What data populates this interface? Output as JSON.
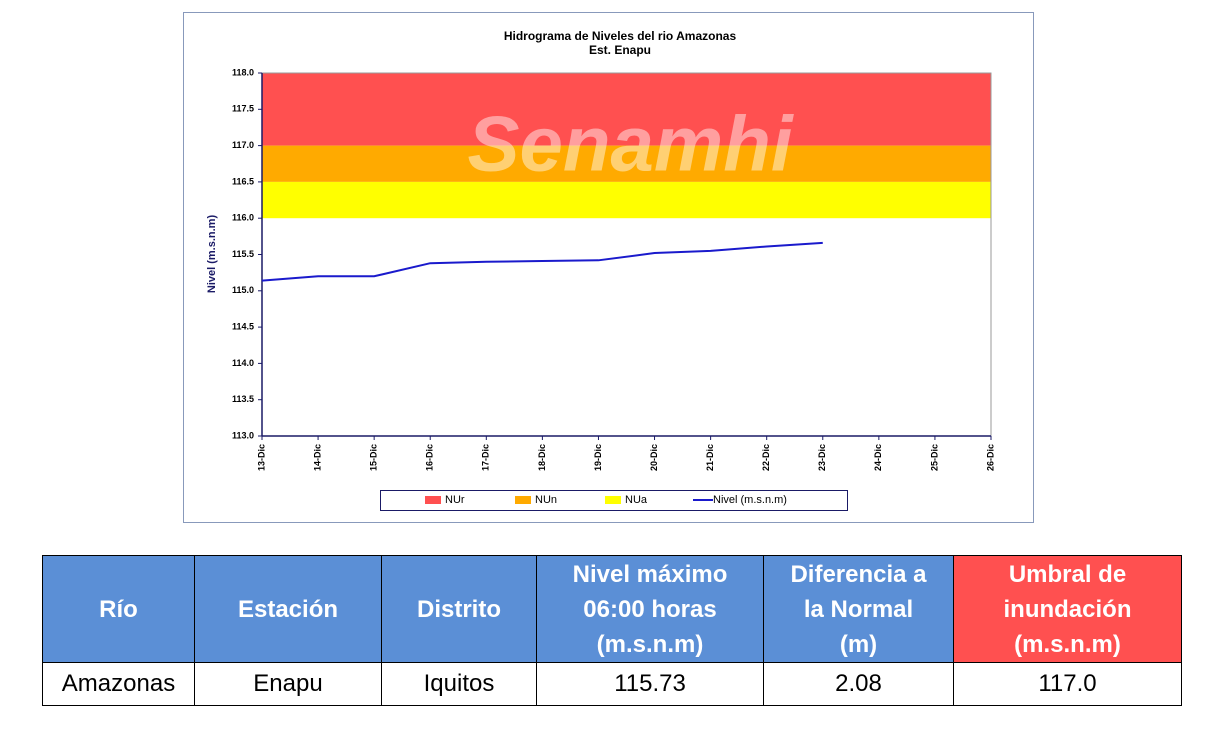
{
  "chart_data": {
    "type": "line",
    "title": "Hidrograma de Niveles del rio Amazonas",
    "subtitle": "Est. Enapu",
    "watermark": "Senamhi",
    "y_label": "Nivel (m.s.n.m)",
    "categories": [
      "13-Dic",
      "14-Dic",
      "15-Dic",
      "16-Dic",
      "17-Dic",
      "18-Dic",
      "19-Dic",
      "20-Dic",
      "21-Dic",
      "22-Dic",
      "23-Dic",
      "24-Dic",
      "25-Dic",
      "26-Dic"
    ],
    "bands": [
      {
        "name": "NUr",
        "color": "#ff5050",
        "from": 117,
        "to": 118
      },
      {
        "name": "NUn",
        "color": "#ffaa00",
        "from": 116.5,
        "to": 117
      },
      {
        "name": "NUa",
        "color": "#ffff00",
        "from": 116,
        "to": 116.5
      }
    ],
    "series": [
      {
        "name": "Nivel (m.s.n.m)",
        "color": "#1a1acc",
        "values": [
          115.14,
          115.2,
          115.2,
          115.38,
          115.4,
          115.41,
          115.42,
          115.52,
          115.55,
          115.61,
          115.66,
          null,
          null,
          null
        ]
      }
    ],
    "ylim": [
      113,
      118
    ],
    "yticks": [
      {
        "value": 113,
        "label": "113.0"
      },
      {
        "value": 113.5,
        "label": "113.5"
      },
      {
        "value": 114,
        "label": "114.0"
      },
      {
        "value": 114.5,
        "label": "114.5"
      },
      {
        "value": 115,
        "label": "115.0"
      },
      {
        "value": 115.5,
        "label": "115.5"
      },
      {
        "value": 116,
        "label": "116.0"
      },
      {
        "value": 116.5,
        "label": "116.5"
      },
      {
        "value": 117,
        "label": "117.0"
      },
      {
        "value": 117.5,
        "label": "117.5"
      },
      {
        "value": 118,
        "label": "118.0"
      }
    ],
    "grid": false
  },
  "table": {
    "header": [
      [
        "Río"
      ],
      [
        "Estación"
      ],
      [
        "Distrito"
      ],
      [
        "Nivel máximo",
        "06:00 horas",
        "(m.s.n.m)"
      ],
      [
        "Diferencia a",
        "la Normal",
        "(m)"
      ],
      [
        "Umbral de",
        "inundación",
        "(m.s.n.m)"
      ]
    ],
    "rows": [
      [
        "Amazonas",
        "Enapu",
        "Iquitos",
        "115.73",
        "2.08",
        "117.0"
      ]
    ]
  }
}
